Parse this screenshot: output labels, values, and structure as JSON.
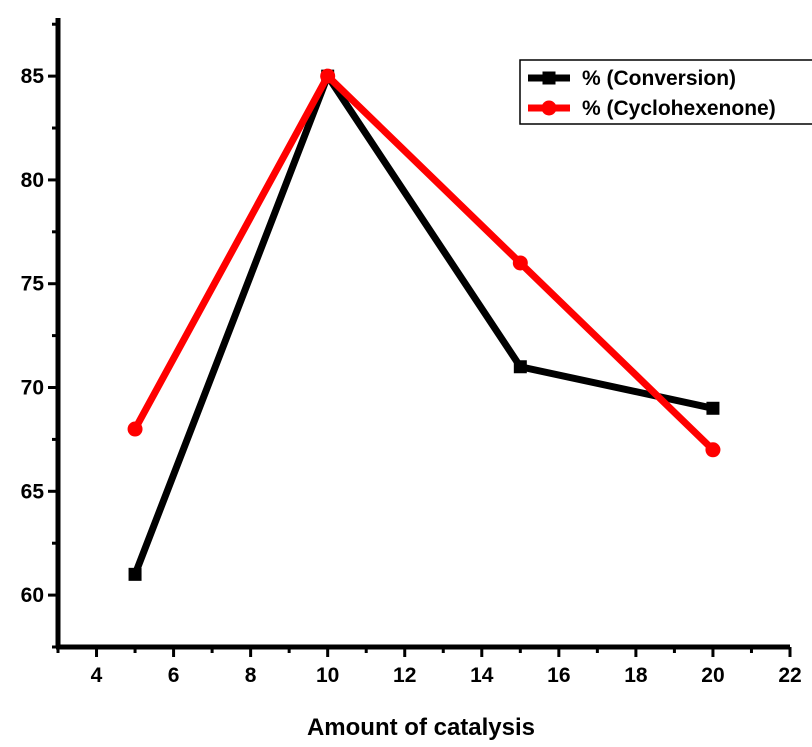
{
  "chart_data": {
    "type": "line",
    "title": "",
    "xlabel": "Amount of catalysis",
    "ylabel": "",
    "xlim": [
      3,
      22
    ],
    "ylim": [
      57.5,
      87.8
    ],
    "x_ticks": [
      {
        "value": 4,
        "label": "4"
      },
      {
        "value": 6,
        "label": "6"
      },
      {
        "value": 8,
        "label": "8"
      },
      {
        "value": 10,
        "label": "10"
      },
      {
        "value": 12,
        "label": "12"
      },
      {
        "value": 14,
        "label": "14"
      },
      {
        "value": 16,
        "label": "16"
      },
      {
        "value": 18,
        "label": "18"
      },
      {
        "value": 20,
        "label": "20"
      },
      {
        "value": 22,
        "label": "22"
      }
    ],
    "y_ticks": [
      {
        "value": 60,
        "label": "60"
      },
      {
        "value": 65,
        "label": "65"
      },
      {
        "value": 70,
        "label": "70"
      },
      {
        "value": 75,
        "label": "75"
      },
      {
        "value": 80,
        "label": "80"
      },
      {
        "value": 85,
        "label": "85"
      }
    ],
    "x": [
      5,
      10,
      15,
      20
    ],
    "series": [
      {
        "name": "% (Conversion)",
        "values": [
          61,
          85,
          71,
          69
        ],
        "color": "#000000",
        "marker": "square"
      },
      {
        "name": "% (Cyclohexenone)",
        "values": [
          68,
          85,
          76,
          67
        ],
        "color": "#ff0000",
        "marker": "circle"
      }
    ],
    "grid": false,
    "legend": {
      "position": "top-right",
      "box": true
    }
  }
}
